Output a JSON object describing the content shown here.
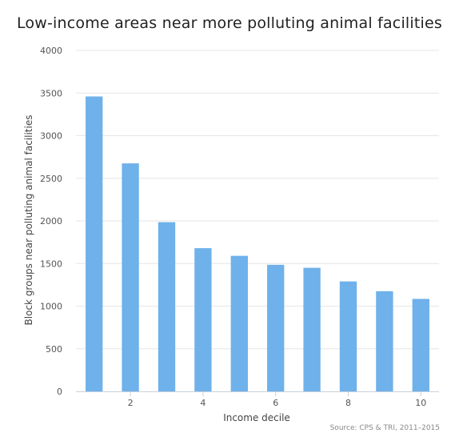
{
  "chart_data": {
    "type": "bar",
    "title": "Low-income areas near more polluting animal facilities",
    "xlabel": "Income decile",
    "ylabel": "Block groups near polluting animal facilities",
    "categories": [
      1,
      2,
      3,
      4,
      5,
      6,
      7,
      8,
      9,
      10
    ],
    "values": [
      3460,
      2675,
      1985,
      1680,
      1590,
      1485,
      1450,
      1290,
      1175,
      1085
    ],
    "ylim": [
      0,
      4000
    ],
    "yticks": [
      0,
      500,
      1000,
      1500,
      2000,
      2500,
      3000,
      3500,
      4000
    ],
    "xticks": [
      2,
      4,
      6,
      8,
      10
    ],
    "grid": true,
    "bar_color": "#6fb1ea",
    "credit": "Source: CPS & TRI, 2011–2015"
  }
}
